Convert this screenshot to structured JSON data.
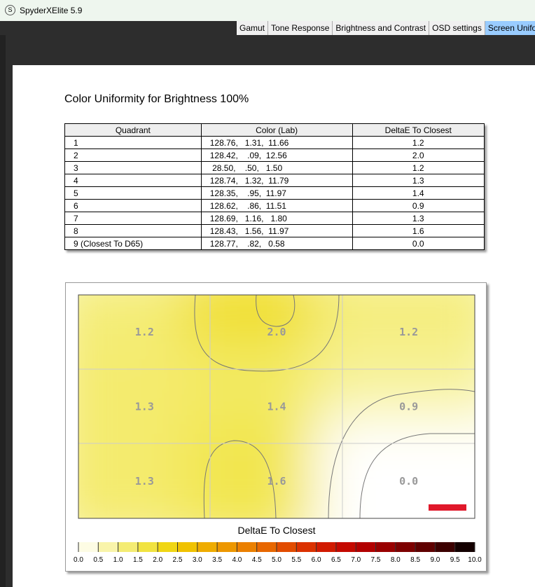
{
  "window": {
    "title": "SpyderXElite 5.9"
  },
  "tabs": [
    "Gamut",
    "Tone Response",
    "Brightness and Contrast",
    "OSD settings",
    "Screen Uniformity"
  ],
  "report": {
    "heading": "Color Uniformity for Brightness 100%",
    "table": {
      "header": [
        "Quadrant",
        "Color (Lab)",
        "DeltaE To Closest"
      ],
      "rows": [
        [
          "1",
          "128.76,   1.31,  11.66",
          "1.2"
        ],
        [
          "2",
          "128.42,    .09,  12.56",
          "2.0"
        ],
        [
          "3",
          " 28.50,    .50,   1.50",
          "1.2"
        ],
        [
          "4",
          "128.74,   1.32,  11.79",
          "1.3"
        ],
        [
          "5",
          "128.35,    .95,  11.97",
          "1.4"
        ],
        [
          "6",
          "128.62,    .86,  11.51",
          "0.9"
        ],
        [
          "7",
          "128.69,   1.16,   1.80",
          "1.3"
        ],
        [
          "8",
          "128.43,   1.56,  11.97",
          "1.6"
        ],
        [
          "9 (Closest To D65)",
          "128.77,    .82,   0.58",
          "0.0"
        ]
      ]
    },
    "legend": {
      "title": "DeltaE To Closest",
      "ticks": [
        "0.0",
        "0.5",
        "1.0",
        "1.5",
        "2.0",
        "2.5",
        "3.0",
        "3.5",
        "4.0",
        "4.5",
        "5.0",
        "5.5",
        "6.0",
        "6.5",
        "7.0",
        "7.5",
        "8.0",
        "8.5",
        "9.0",
        "9.5",
        "10.0"
      ]
    }
  }
}
